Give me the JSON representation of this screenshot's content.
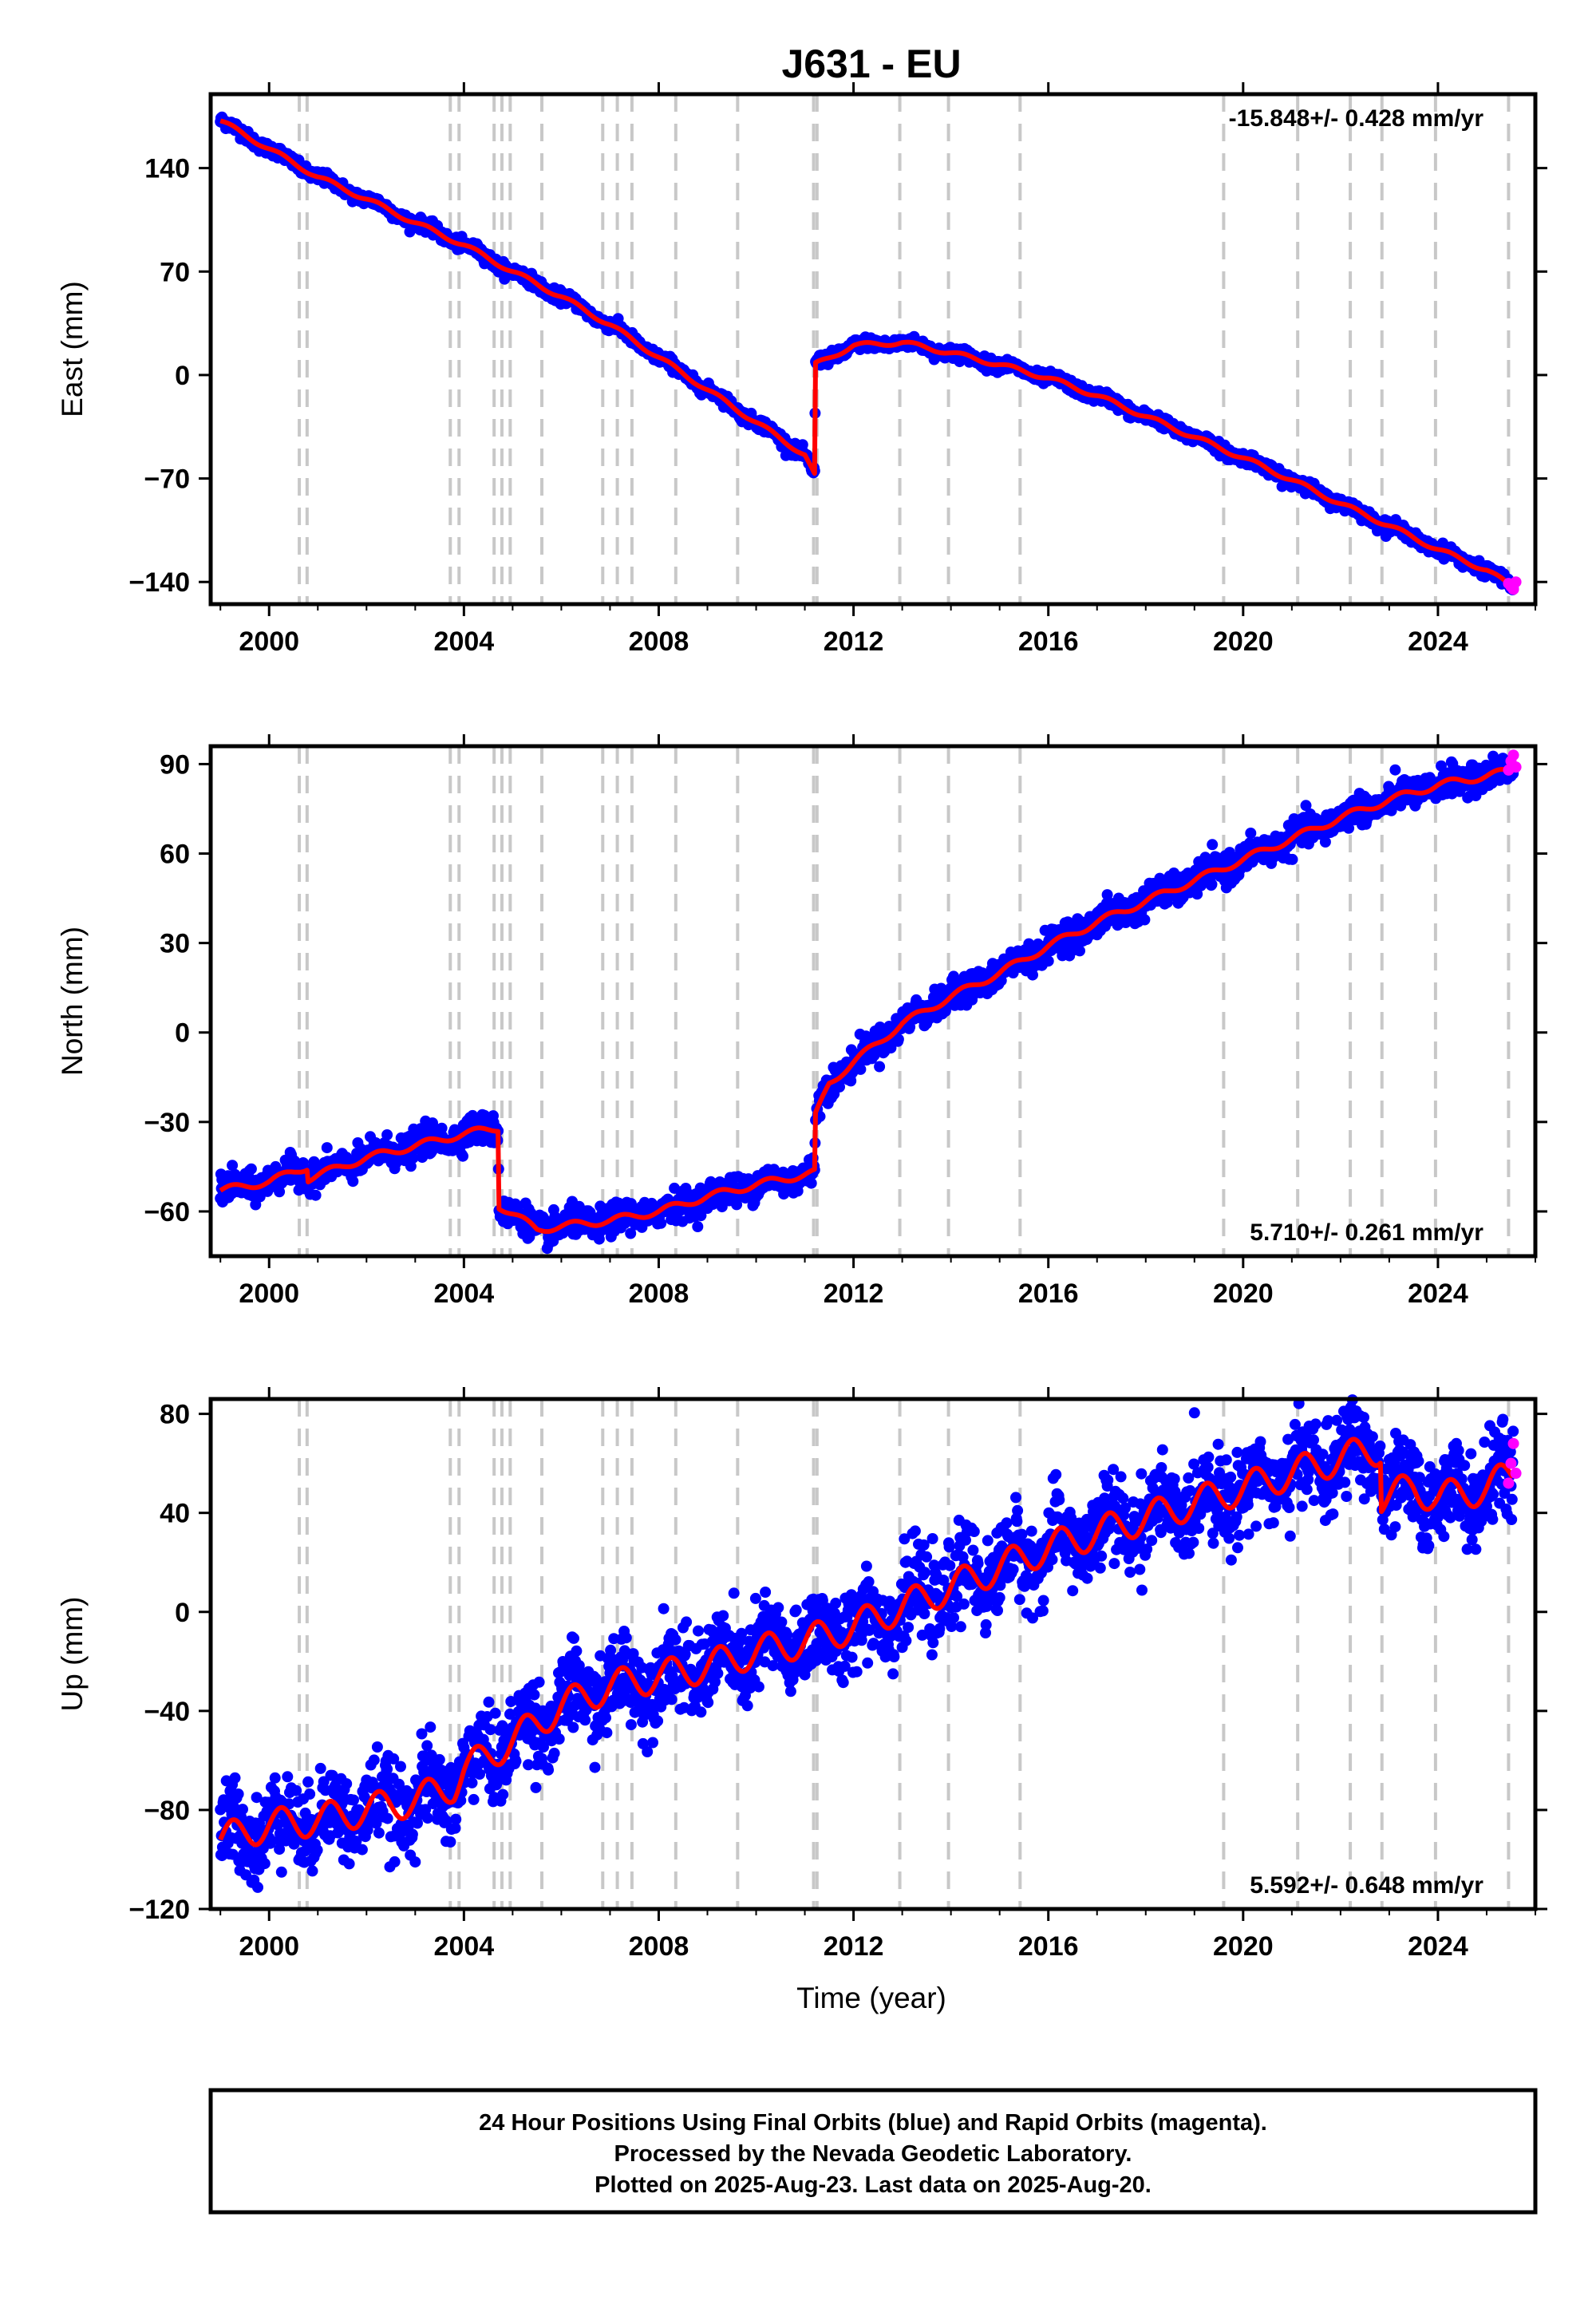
{
  "title": "J631 - EU",
  "x_axis_label": "Time (year)",
  "footer": {
    "line1": "24 Hour Positions Using Final Orbits (blue) and Rapid Orbits (magenta).",
    "line2": "Processed by the Nevada Geodetic Laboratory.",
    "line3": "Plotted on 2025-Aug-23. Last data on 2025-Aug-20."
  },
  "colors": {
    "final_orbits": "#0000ff",
    "rapid_orbits": "#ff00ff",
    "model_fit": "#ff0000",
    "event_lines": "#c8c8c8",
    "frame": "#000000"
  },
  "event_lines_years": [
    2000.62,
    2000.78,
    2003.72,
    2003.9,
    2004.62,
    2004.78,
    2004.95,
    2005.6,
    2006.85,
    2007.15,
    2007.45,
    2008.35,
    2009.62,
    2011.18,
    2011.25,
    2012.95,
    2013.95,
    2015.42,
    2019.6,
    2021.12,
    2022.2,
    2022.85,
    2023.95,
    2025.45
  ],
  "chart_data": [
    {
      "type": "scatter",
      "panel": "east",
      "ylabel": "East (mm)",
      "xlim": [
        1998.8,
        2026.0
      ],
      "ylim": [
        -155,
        190
      ],
      "x_ticks": [
        2000,
        2004,
        2008,
        2012,
        2016,
        2020,
        2024
      ],
      "y_ticks": [
        -140,
        -70,
        0,
        70,
        140
      ],
      "grid": false,
      "annotation": "-15.848+/- 0.428 mm/yr",
      "annotation_position": "top-right",
      "series": [
        {
          "style": "points",
          "x": [
            1999.0,
            2000.0,
            2001.0,
            2002.0,
            2003.0,
            2004.0,
            2005.0,
            2006.0,
            2007.0,
            2008.0,
            2009.0,
            2010.0,
            2011.0,
            2011.2,
            2011.22,
            2012.0,
            2013.0,
            2014.0,
            2015.0,
            2016.0,
            2017.0,
            2018.0,
            2019.0,
            2020.0,
            2021.0,
            2022.0,
            2023.0,
            2024.0,
            2025.0,
            2025.55
          ],
          "y": [
            172,
            153,
            134,
            119,
            103,
            88,
            70,
            53,
            34,
            12,
            -10,
            -32,
            -54,
            -68,
            7,
            20,
            22,
            15,
            7,
            -2,
            -14,
            -28,
            -42,
            -56,
            -71,
            -87,
            -102,
            -118,
            -132,
            -144
          ],
          "noise": 2.0
        },
        {
          "style": "line",
          "x": [
            1999.0,
            2000.0,
            2001.0,
            2002.0,
            2003.0,
            2004.0,
            2005.0,
            2006.0,
            2007.0,
            2008.0,
            2009.0,
            2010.0,
            2011.0,
            2011.2,
            2011.22,
            2012.0,
            2013.0,
            2014.0,
            2015.0,
            2016.0,
            2017.0,
            2018.0,
            2019.0,
            2020.0,
            2021.0,
            2022.0,
            2023.0,
            2024.0,
            2025.0,
            2025.55
          ],
          "y": [
            172,
            153,
            134,
            119,
            103,
            88,
            70,
            53,
            34,
            12,
            -10,
            -32,
            -54,
            -68,
            7,
            20,
            22,
            15,
            7,
            -2,
            -14,
            -28,
            -42,
            -56,
            -71,
            -87,
            -102,
            -118,
            -132,
            -144
          ],
          "seasonal": 1.5
        },
        {
          "style": "rapid",
          "x": [
            2025.45,
            2025.5,
            2025.55,
            2025.6
          ],
          "y": [
            -141,
            -143,
            -145,
            -140
          ]
        }
      ]
    },
    {
      "type": "scatter",
      "panel": "north",
      "ylabel": "North (mm)",
      "xlim": [
        1998.8,
        2026.0
      ],
      "ylim": [
        -75,
        96
      ],
      "x_ticks": [
        2000,
        2004,
        2008,
        2012,
        2016,
        2020,
        2024
      ],
      "y_ticks": [
        -60,
        -30,
        0,
        30,
        60,
        90
      ],
      "grid": false,
      "annotation": "5.710+/- 0.261 mm/yr",
      "annotation_position": "bottom-right",
      "series": [
        {
          "style": "points",
          "x": [
            1999.0,
            2000.0,
            2000.78,
            2000.8,
            2002.0,
            2003.0,
            2004.0,
            2004.7,
            2004.72,
            2005.5,
            2007.0,
            2008.0,
            2009.0,
            2010.0,
            2011.2,
            2011.22,
            2011.5,
            2012.0,
            2013.0,
            2014.0,
            2015.0,
            2016.0,
            2017.0,
            2018.0,
            2019.0,
            2020.0,
            2021.0,
            2022.0,
            2023.0,
            2024.0,
            2025.0,
            2025.55
          ],
          "y": [
            -53,
            -50,
            -45,
            -49,
            -42,
            -38,
            -34,
            -32,
            -58,
            -66,
            -63,
            -60,
            -55,
            -51,
            -47,
            -28,
            -17,
            -10,
            3,
            12,
            20,
            29,
            37,
            44,
            51,
            58,
            65,
            72,
            78,
            83,
            86,
            88
          ],
          "noise": 2.4
        },
        {
          "style": "line",
          "x": [
            1999.0,
            2000.0,
            2000.78,
            2000.8,
            2002.0,
            2003.0,
            2004.0,
            2004.7,
            2004.72,
            2005.5,
            2007.0,
            2008.0,
            2009.0,
            2010.0,
            2011.2,
            2011.22,
            2011.5,
            2012.0,
            2013.0,
            2014.0,
            2015.0,
            2016.0,
            2017.0,
            2018.0,
            2019.0,
            2020.0,
            2021.0,
            2022.0,
            2023.0,
            2024.0,
            2025.0,
            2025.55
          ],
          "y": [
            -53,
            -50,
            -45,
            -49,
            -42,
            -38,
            -34,
            -32,
            -58,
            -66,
            -63,
            -60,
            -55,
            -51,
            -47,
            -28,
            -17,
            -10,
            3,
            12,
            20,
            29,
            37,
            44,
            51,
            58,
            65,
            72,
            78,
            83,
            86,
            88
          ],
          "seasonal": 1.2
        },
        {
          "style": "rapid",
          "x": [
            2025.45,
            2025.5,
            2025.55,
            2025.6
          ],
          "y": [
            88,
            91,
            93,
            89
          ]
        }
      ]
    },
    {
      "type": "scatter",
      "panel": "up",
      "ylabel": "Up (mm)",
      "xlim": [
        1998.8,
        2026.0
      ],
      "ylim": [
        -120,
        86
      ],
      "x_ticks": [
        2000,
        2004,
        2008,
        2012,
        2016,
        2020,
        2024
      ],
      "y_ticks": [
        -120,
        -80,
        -40,
        0,
        40,
        80
      ],
      "grid": false,
      "annotation": "5.592+/- 0.648 mm/yr",
      "annotation_position": "bottom-right",
      "series": [
        {
          "style": "points",
          "x": [
            1999.0,
            2000.0,
            2001.0,
            2002.0,
            2003.0,
            2003.8,
            2004.0,
            2005.0,
            2006.0,
            2007.0,
            2008.0,
            2009.0,
            2010.0,
            2011.0,
            2012.0,
            2013.0,
            2014.0,
            2015.0,
            2016.0,
            2017.0,
            2018.0,
            2019.0,
            2020.0,
            2021.0,
            2022.0,
            2022.82,
            2022.84,
            2023.5,
            2024.0,
            2025.0,
            2025.55
          ],
          "y": [
            -92,
            -86,
            -84,
            -80,
            -76,
            -70,
            -64,
            -52,
            -38,
            -30,
            -26,
            -22,
            -16,
            -12,
            -6,
            2,
            10,
            18,
            26,
            32,
            38,
            44,
            50,
            56,
            62,
            66,
            46,
            50,
            46,
            50,
            56
          ],
          "noise": 8.5
        },
        {
          "style": "line",
          "x": [
            1999.0,
            2000.0,
            2001.0,
            2002.0,
            2003.0,
            2003.8,
            2004.0,
            2005.0,
            2006.0,
            2007.0,
            2008.0,
            2009.0,
            2010.0,
            2011.0,
            2012.0,
            2013.0,
            2014.0,
            2015.0,
            2016.0,
            2017.0,
            2018.0,
            2019.0,
            2020.0,
            2021.0,
            2022.0,
            2022.82,
            2022.84,
            2023.5,
            2024.0,
            2025.0,
            2025.55
          ],
          "y": [
            -92,
            -86,
            -84,
            -80,
            -76,
            -70,
            -64,
            -52,
            -38,
            -30,
            -26,
            -22,
            -16,
            -12,
            -6,
            2,
            10,
            18,
            26,
            32,
            38,
            44,
            50,
            56,
            62,
            66,
            46,
            50,
            46,
            50,
            56
          ],
          "seasonal": 6.5
        },
        {
          "style": "rapid",
          "x": [
            2025.45,
            2025.5,
            2025.55,
            2025.6
          ],
          "y": [
            52,
            60,
            68,
            56
          ]
        }
      ]
    }
  ]
}
